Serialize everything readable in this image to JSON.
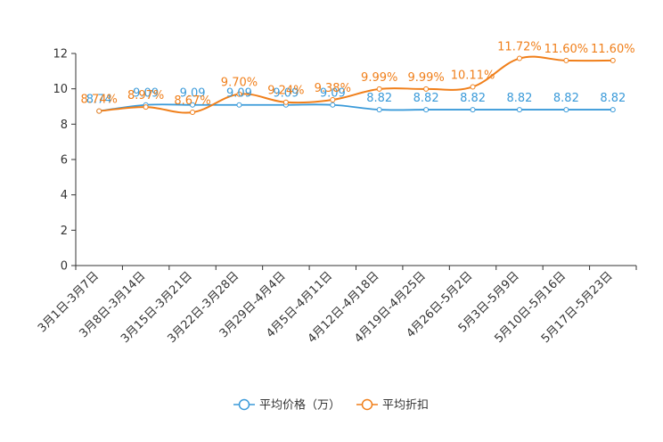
{
  "chart_data": {
    "type": "line",
    "categories": [
      "3月1日-3月7日",
      "3月8日-3月14日",
      "3月15日-3月21日",
      "3月22日-3月28日",
      "3月29日-4月4日",
      "4月5日-4月11日",
      "4月12日-4月18日",
      "4月19日-4月25日",
      "4月26日-5月2日",
      "5月3日-5月9日",
      "5月10日-5月16日",
      "5月17日-5月23日"
    ],
    "ylim": [
      0,
      12
    ],
    "yticks": [
      0,
      2,
      4,
      6,
      8,
      10,
      12
    ],
    "ytick_labels": [
      "0",
      "2",
      "4",
      "6",
      "8",
      "10",
      "12"
    ],
    "series": [
      {
        "name": "平均价格（万）",
        "color": "#3a9ad9",
        "values": [
          8.74,
          9.09,
          9.09,
          9.09,
          9.09,
          9.09,
          8.82,
          8.82,
          8.82,
          8.82,
          8.82,
          8.82
        ],
        "labels": [
          "8.74",
          "9.09",
          "9.09",
          "9.09",
          "9.09",
          "9.09",
          "8.82",
          "8.82",
          "8.82",
          "8.82",
          "8.82",
          "8.82"
        ]
      },
      {
        "name": "平均折扣",
        "color": "#f07f1a",
        "values": [
          8.74,
          8.97,
          8.67,
          9.7,
          9.24,
          9.38,
          9.99,
          9.99,
          10.11,
          11.72,
          11.6,
          11.6
        ],
        "labels": [
          "8.74%",
          "8.97%",
          "8.67%",
          "9.70%",
          "9.24%",
          "9.38%",
          "9.99%",
          "9.99%",
          "10.11%",
          "11.72%",
          "11.60%",
          "11.60%"
        ]
      }
    ],
    "legend_position": "bottom-center",
    "grid": false
  }
}
